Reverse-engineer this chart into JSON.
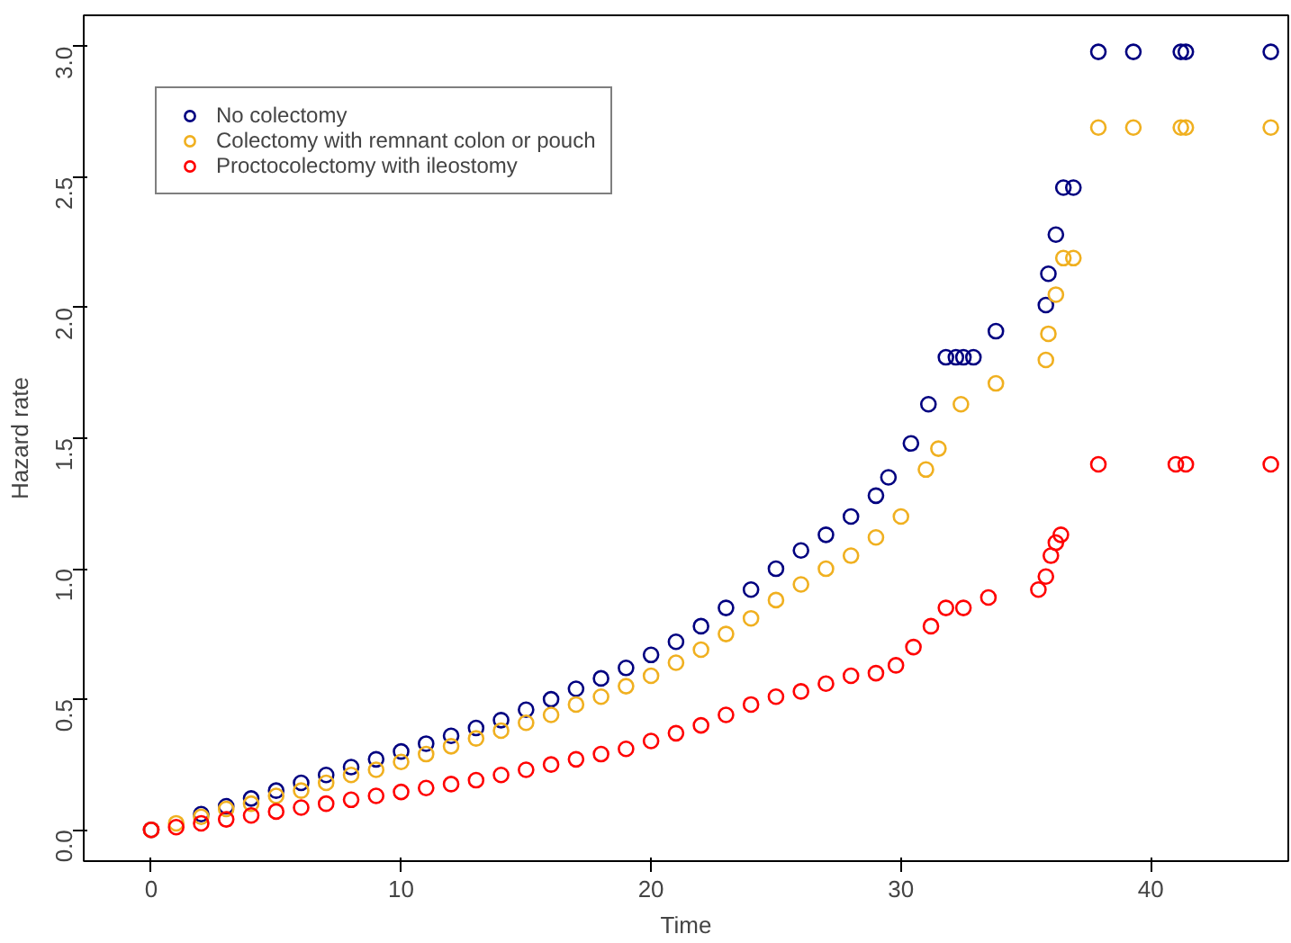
{
  "chart_data": {
    "type": "scatter",
    "xlabel": "Time",
    "ylabel": "Hazard rate",
    "xlim": [
      -2.7,
      45.5
    ],
    "ylim": [
      -0.12,
      3.12
    ],
    "xticks": [
      0,
      10,
      20,
      30,
      40
    ],
    "yticks": [
      {
        "value": 0,
        "label": "0.0"
      },
      {
        "value": 0.5,
        "label": "0.5"
      },
      {
        "value": 1,
        "label": "1.0"
      },
      {
        "value": 1.5,
        "label": "1.5"
      },
      {
        "value": 2,
        "label": "2.0"
      },
      {
        "value": 2.5,
        "label": "2.5"
      },
      {
        "value": 3,
        "label": "3.0"
      }
    ],
    "grid": false,
    "legend": "top left",
    "marker": "circle",
    "series": [
      {
        "name": "No colectomy",
        "color": "#000080",
        "x": [
          0,
          1,
          2,
          3,
          4,
          5,
          6,
          7,
          8,
          9,
          10,
          11,
          12,
          13,
          14,
          15,
          16,
          17,
          18,
          19,
          20,
          21,
          22,
          23,
          24,
          25,
          26,
          27,
          28,
          29,
          29.5,
          30.4,
          31.1,
          31.8,
          32.2,
          32.5,
          32.9,
          33.8,
          35.8,
          35.9,
          36.2,
          36.5,
          36.9,
          37.9,
          39.3,
          41.2,
          41.4,
          44.8
        ],
        "values": [
          0,
          null,
          0.06,
          0.09,
          0.12,
          0.15,
          0.18,
          0.21,
          0.24,
          0.27,
          0.3,
          0.33,
          0.36,
          0.39,
          0.42,
          0.46,
          0.5,
          0.54,
          0.58,
          0.62,
          0.67,
          0.72,
          0.78,
          0.85,
          0.92,
          1.0,
          1.07,
          1.13,
          1.2,
          1.28,
          1.35,
          1.48,
          1.63,
          1.81,
          1.81,
          1.81,
          1.81,
          1.91,
          2.01,
          2.13,
          2.28,
          2.46,
          2.46,
          2.98,
          2.98,
          2.98,
          2.98,
          2.98
        ]
      },
      {
        "name": "Colectomy with remnant colon or pouch",
        "color": "#f0b020",
        "x": [
          0,
          1,
          2,
          3,
          4,
          5,
          6,
          7,
          8,
          9,
          10,
          11,
          12,
          13,
          14,
          15,
          16,
          17,
          18,
          19,
          20,
          21,
          22,
          23,
          24,
          25,
          26,
          27,
          28,
          29,
          30,
          31,
          31.5,
          32.4,
          33.8,
          35.8,
          35.9,
          36.2,
          36.5,
          36.9,
          37.9,
          39.3,
          41.2,
          41.4,
          44.8
        ],
        "values": [
          0,
          0.025,
          0.05,
          0.08,
          0.1,
          0.13,
          0.15,
          0.18,
          0.21,
          0.23,
          0.26,
          0.29,
          0.32,
          0.35,
          0.38,
          0.41,
          0.44,
          0.48,
          0.51,
          0.55,
          0.59,
          0.64,
          0.69,
          0.75,
          0.81,
          0.88,
          0.94,
          1.0,
          1.05,
          1.12,
          1.2,
          1.38,
          1.46,
          1.63,
          1.71,
          1.8,
          1.9,
          2.05,
          2.19,
          2.19,
          2.69,
          2.69,
          2.69,
          2.69,
          2.69
        ]
      },
      {
        "name": "Proctocolectomy with ileostomy",
        "color": "#ff0000",
        "x": [
          0,
          1,
          2,
          3,
          4,
          5,
          6,
          7,
          8,
          9,
          10,
          11,
          12,
          13,
          14,
          15,
          16,
          17,
          18,
          19,
          20,
          21,
          22,
          23,
          24,
          25,
          26,
          27,
          28,
          29,
          29.8,
          30.5,
          31.2,
          31.8,
          32.5,
          33.5,
          35.5,
          35.8,
          36,
          36.2,
          36.4,
          37.9,
          41.0,
          41.4,
          44.8
        ],
        "values": [
          0,
          0.01,
          0.025,
          0.04,
          0.055,
          0.07,
          0.085,
          0.1,
          0.115,
          0.13,
          0.145,
          0.16,
          0.175,
          0.19,
          0.21,
          0.23,
          0.25,
          0.27,
          0.29,
          0.31,
          0.34,
          0.37,
          0.4,
          0.44,
          0.48,
          0.51,
          0.53,
          0.56,
          0.59,
          0.6,
          0.63,
          0.7,
          0.78,
          0.85,
          0.85,
          0.89,
          0.92,
          0.97,
          1.05,
          1.1,
          1.13,
          1.4,
          1.4,
          1.4,
          1.4
        ]
      }
    ]
  }
}
